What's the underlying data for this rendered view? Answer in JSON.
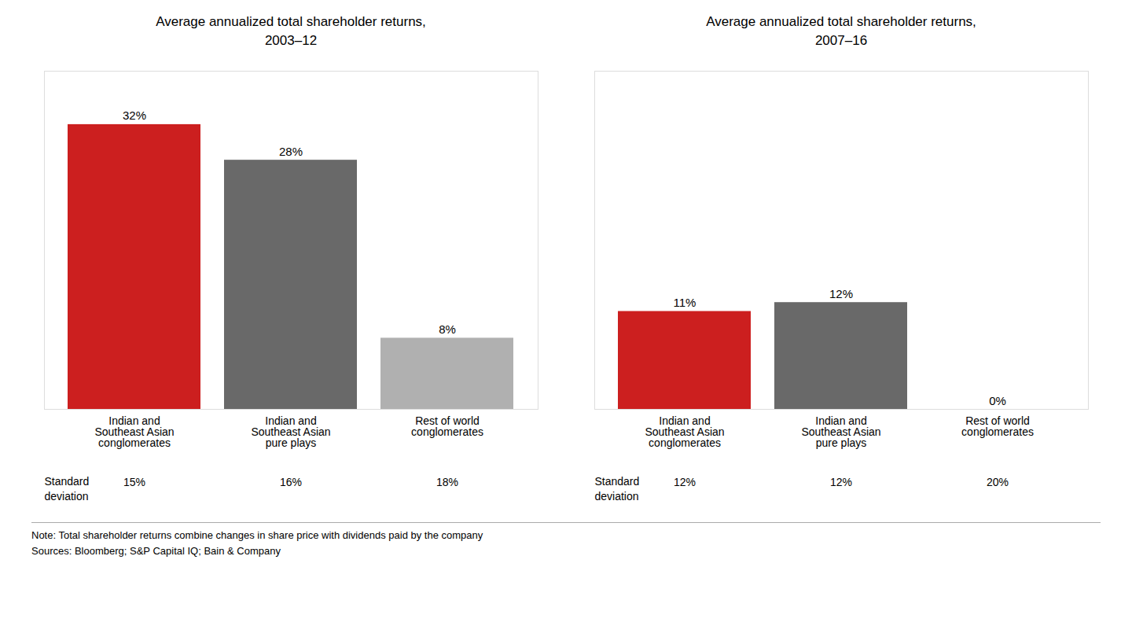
{
  "chart_data": [
    {
      "type": "bar",
      "title": "Average annualized total shareholder returns,\n2003–12",
      "categories": [
        "Indian and\nSoutheast Asian\nconglomerates",
        "Indian and\nSoutheast Asian\npure plays",
        "Rest of world\nconglomerates"
      ],
      "values": [
        32,
        28,
        8
      ],
      "value_labels": [
        "32%",
        "28%",
        "8%"
      ],
      "colors": [
        "#cc1f1f",
        "#696969",
        "#b0b0b0"
      ],
      "data_labels": true,
      "ylim": [
        0,
        38
      ],
      "tick_labels": "x",
      "grid": false,
      "std_label": "Standard\ndeviation",
      "std_devs": [
        "15%",
        "16%",
        "18%"
      ]
    },
    {
      "type": "bar",
      "title": "Average annualized total shareholder returns,\n2007–16",
      "categories": [
        "Indian and\nSoutheast Asian\nconglomerates",
        "Indian and\nSoutheast Asian\npure plays",
        "Rest of world\nconglomerates"
      ],
      "values": [
        11,
        12,
        0
      ],
      "value_labels": [
        "11%",
        "12%",
        "0%"
      ],
      "colors": [
        "#cc1f1f",
        "#696969",
        "#e0e0e0"
      ],
      "data_labels": true,
      "ylim": [
        0,
        38
      ],
      "tick_labels": "x",
      "grid": false,
      "std_label": "Standard\ndeviation",
      "std_devs": [
        "12%",
        "12%",
        "20%"
      ]
    }
  ],
  "notes": [
    "Note: Total shareholder returns combine changes in share price with dividends paid by the company",
    "Sources: Bloomberg; S&P Capital IQ; Bain & Company"
  ]
}
